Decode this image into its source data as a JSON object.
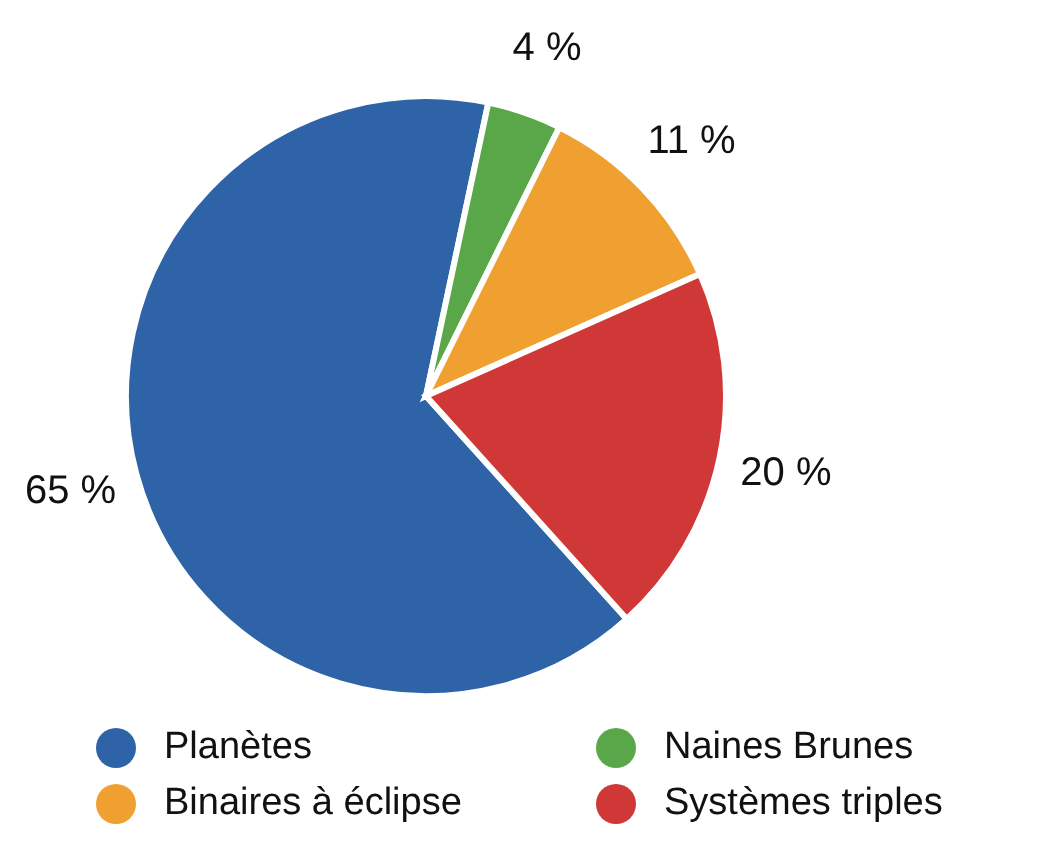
{
  "chart_data": {
    "type": "pie",
    "categories": [
      "Planètes",
      "Naines Brunes",
      "Binaires à éclipse",
      "Systèmes triples"
    ],
    "values": [
      65,
      4,
      11,
      20
    ],
    "colors": [
      "#2f63a8",
      "#5aa74a",
      "#f0a030",
      "#d03838"
    ],
    "value_labels": [
      "65 %",
      "4 %",
      "11 %",
      "20 %"
    ],
    "legend": "bottom"
  }
}
